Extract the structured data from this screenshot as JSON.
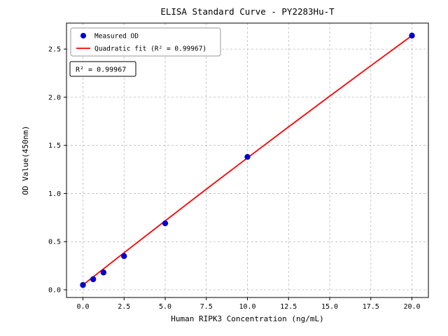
{
  "figure": {
    "background": "#ffffff"
  },
  "chart_data": {
    "type": "scatter",
    "title": "ELISA Standard Curve - PY2283Hu-T",
    "xlabel": "Human RIPK3 Concentration (ng/mL)",
    "ylabel": "OD Value(450nm)",
    "xlim": [
      -1,
      21
    ],
    "ylim": [
      -0.08,
      2.77
    ],
    "grid": true,
    "grid_color": "#b8b8b8",
    "frame_color": "#000000",
    "xticks": {
      "values": [
        0,
        2.5,
        5,
        7.5,
        10,
        12.5,
        15,
        17.5,
        20
      ],
      "labels": [
        "0.0",
        "2.5",
        "5.0",
        "7.5",
        "10.0",
        "12.5",
        "15.0",
        "17.5",
        "20.0"
      ]
    },
    "yticks": {
      "values": [
        0,
        0.5,
        1,
        1.5,
        2,
        2.5
      ],
      "labels": [
        "0.0",
        "0.5",
        "1.0",
        "1.5",
        "2.0",
        "2.5"
      ]
    },
    "series": [
      {
        "name": "Quadratic fit (R² = 0.99967)",
        "type": "line",
        "color": "#ff0000",
        "x": [
          0,
          2.5,
          5,
          7.5,
          10,
          12.5,
          15,
          17.5,
          20
        ],
        "y": [
          0.05,
          0.385,
          0.716,
          1.045,
          1.37,
          1.692,
          2.011,
          2.327,
          2.64
        ]
      },
      {
        "name": "Measured OD",
        "type": "scatter",
        "color": "#0000cd",
        "x": [
          0,
          0.625,
          1.25,
          2.5,
          5,
          10,
          20
        ],
        "y": [
          0.05,
          0.11,
          0.18,
          0.35,
          0.69,
          1.38,
          2.64
        ]
      }
    ],
    "legend": {
      "position": "upper-left",
      "entries": [
        "Measured OD",
        "Quadratic fit (R² = 0.99967)"
      ]
    },
    "annotation": "R² = 0.99967"
  }
}
